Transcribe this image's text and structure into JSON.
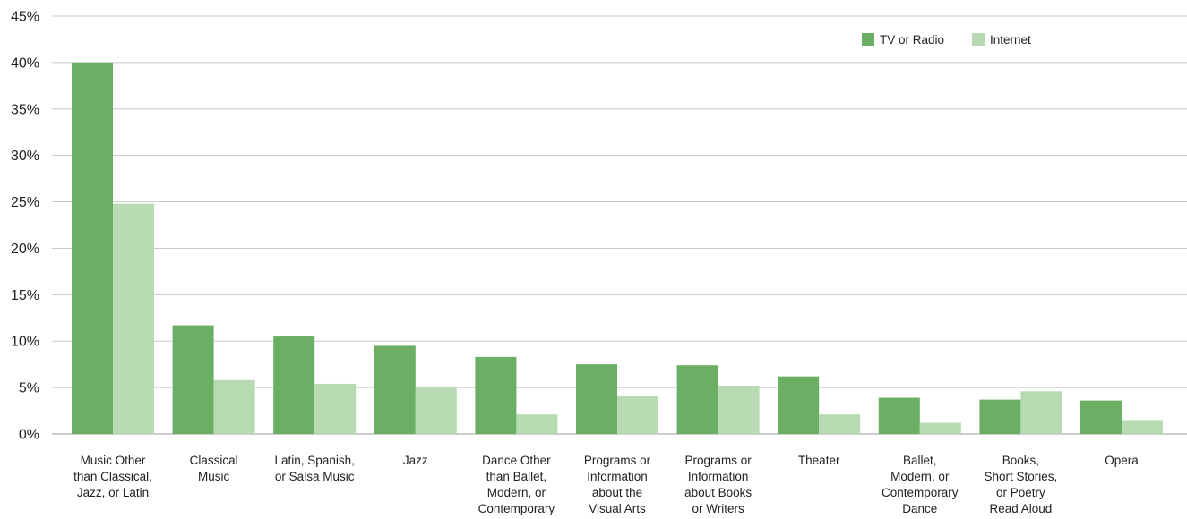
{
  "chart_data": {
    "type": "bar",
    "categories": [
      [
        "Music Other",
        "than Classical,",
        "Jazz, or Latin"
      ],
      [
        "Classical",
        "Music"
      ],
      [
        "Latin, Spanish,",
        "or Salsa Music"
      ],
      [
        "Jazz"
      ],
      [
        "Dance Other",
        "than Ballet,",
        "Modern, or",
        "Contemporary"
      ],
      [
        "Programs or",
        "Information",
        "about the",
        "Visual Arts"
      ],
      [
        "Programs or",
        "Information",
        "about Books",
        "or Writers"
      ],
      [
        "Theater"
      ],
      [
        "Ballet,",
        "Modern, or",
        "Contemporary",
        "Dance"
      ],
      [
        "Books,",
        "Short Stories,",
        "or Poetry",
        "Read Aloud"
      ],
      [
        "Opera"
      ]
    ],
    "series": [
      {
        "name": "TV or Radio",
        "color": "#6aaf63",
        "values": [
          40.0,
          11.7,
          10.5,
          9.5,
          8.3,
          7.5,
          7.4,
          6.2,
          3.9,
          3.7,
          3.6
        ]
      },
      {
        "name": "Internet",
        "color": "#b8dab3",
        "values": [
          24.8,
          5.8,
          5.4,
          5.0,
          2.1,
          4.1,
          5.2,
          2.1,
          1.2,
          4.6,
          1.5
        ]
      }
    ],
    "yticks": [
      "0%",
      "5%",
      "10%",
      "15%",
      "20%",
      "25%",
      "30%",
      "35%",
      "40%",
      "45%"
    ],
    "ylim": [
      0,
      45
    ],
    "grid": true,
    "legend_position": "top-right",
    "title": "",
    "xlabel": "",
    "ylabel": ""
  }
}
